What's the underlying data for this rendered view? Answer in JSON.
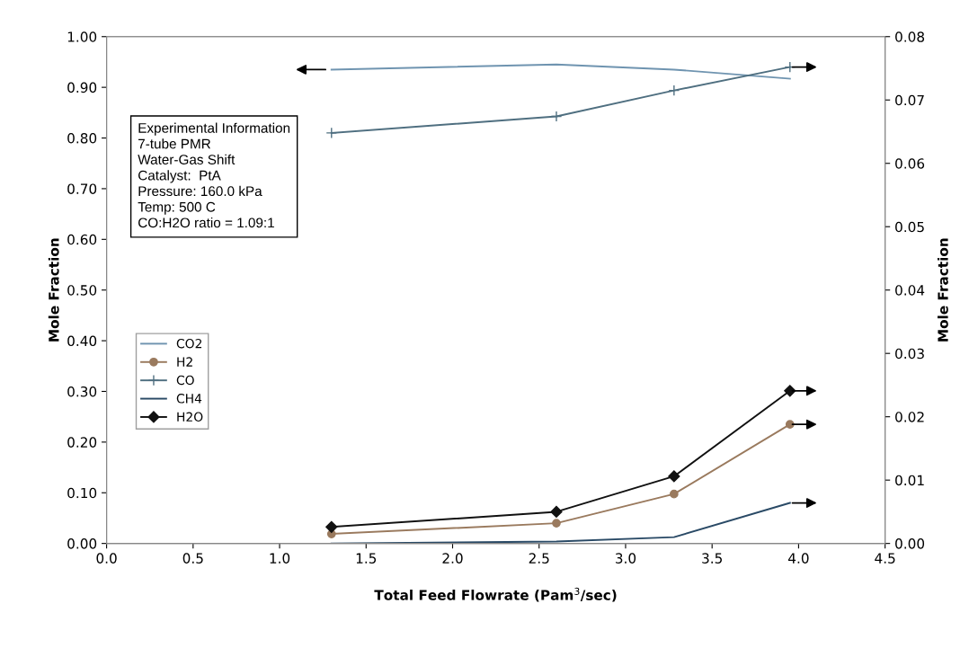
{
  "chart_data": {
    "type": "line",
    "xlabel": "Total Feed Flowrate (Pam$^{3}$/sec)",
    "ylabel": "Mole Fraction",
    "y2label": "Mole Fraction",
    "x": [
      1.3,
      2.6,
      3.28,
      3.95
    ],
    "xlim": [
      0,
      4.5
    ],
    "xticks": [
      {
        "value": 0,
        "label": "0.0"
      },
      0.5,
      {
        "value": 1,
        "label": "1.0"
      },
      1.5,
      {
        "value": 2,
        "label": "2.0"
      },
      2.5,
      {
        "value": 3,
        "label": "3.0"
      },
      3.5,
      {
        "value": 4,
        "label": "4.0"
      },
      4.5
    ],
    "ylim": [
      0,
      1
    ],
    "yticks": [
      {
        "value": 0,
        "label": "0.00"
      },
      {
        "value": 0.1,
        "label": "0.10"
      },
      {
        "value": 0.2,
        "label": "0.20"
      },
      {
        "value": 0.3,
        "label": "0.30"
      },
      {
        "value": 0.4,
        "label": "0.40"
      },
      {
        "value": 0.5,
        "label": "0.50"
      },
      {
        "value": 0.6,
        "label": "0.60"
      },
      {
        "value": 0.7,
        "label": "0.70"
      },
      {
        "value": 0.8,
        "label": "0.80"
      },
      {
        "value": 0.9,
        "label": "0.90"
      },
      {
        "value": 1,
        "label": "1.00"
      }
    ],
    "y2lim": [
      0,
      0.08
    ],
    "y2ticks": [
      {
        "value": 0,
        "label": "0.00"
      },
      0.01,
      0.02,
      0.03,
      0.04,
      0.05,
      0.06,
      0.07,
      0.08
    ],
    "series": [
      {
        "name": "CO2",
        "color": "#6f94b0",
        "marker": "none",
        "values": [
          0.935,
          0.945,
          0.935,
          0.917
        ]
      },
      {
        "name": "H2",
        "color": "#9a7a5e",
        "marker": "circle",
        "axis": "y2",
        "values": [
          0.0015,
          0.0032,
          0.0078,
          0.0188
        ]
      },
      {
        "name": "CO",
        "color": "#4f6f80",
        "marker": "cross",
        "axis": "y2",
        "values": [
          0.0648,
          0.0674,
          0.0715,
          0.0752
        ]
      },
      {
        "name": "CH4",
        "color": "#2a4a66",
        "marker": "none",
        "axis": "y2",
        "values": [
          0.0,
          0.0003,
          0.001,
          0.0064
        ]
      },
      {
        "name": "H2O",
        "color": "#111111",
        "marker": "diamond",
        "axis": "y2",
        "values": [
          0.0026,
          0.005,
          0.0106,
          0.0241
        ]
      }
    ],
    "annotations": [
      "Experimental Information",
      "7-tube PMR",
      "Water-Gas Shift",
      "Catalyst:  PtA",
      "Pressure: 160.0 kPa",
      "Temp: 500 C",
      "CO:H2O ratio = 1.09:1"
    ],
    "legend": "center left",
    "grid": false
  }
}
